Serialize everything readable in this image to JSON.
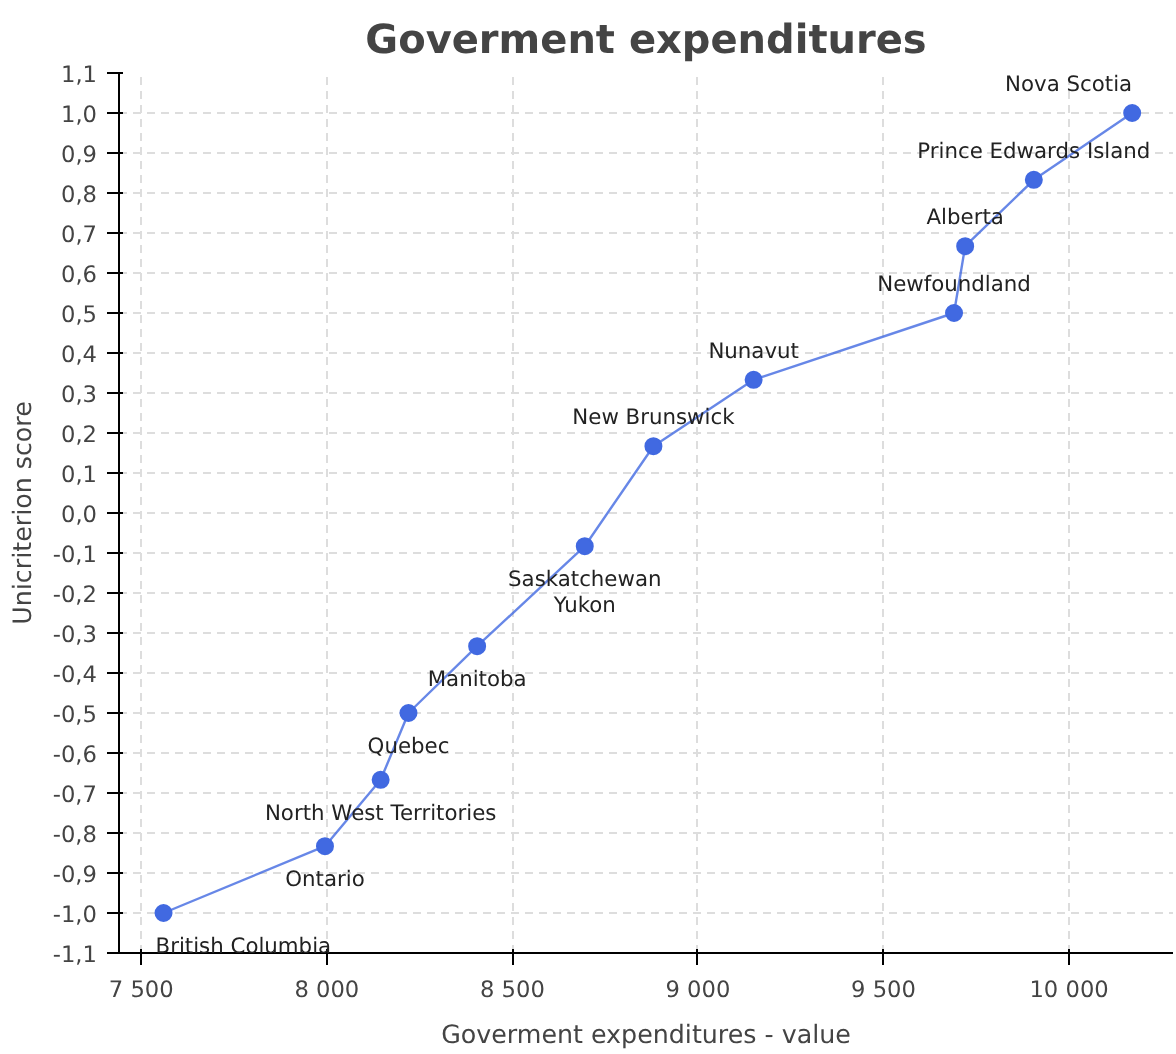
{
  "chart_data": {
    "type": "line",
    "title": "Goverment expenditures",
    "xlabel": "Goverment expenditures - value",
    "ylabel": "Unicriterion score",
    "x": [
      7560,
      7995,
      8145,
      8220,
      8405,
      8695,
      8880,
      9150,
      9690,
      9720,
      9905,
      10170
    ],
    "series": [
      {
        "color": "#4169e1",
        "values": [
          -1.0,
          -0.833,
          -0.667,
          -0.5,
          -0.333,
          -0.083,
          0.167,
          0.333,
          0.5,
          0.667,
          0.833,
          1.0
        ]
      }
    ],
    "marker": "circle",
    "line_style": "solid",
    "grid": true,
    "xlim": [
      7440,
      10280
    ],
    "xticks": [
      {
        "value": 7500,
        "label": "7 500"
      },
      {
        "value": 8000,
        "label": "8 000"
      },
      {
        "value": 8500,
        "label": "8 500"
      },
      {
        "value": 9000,
        "label": "9 000"
      },
      {
        "value": 9500,
        "label": "9 500"
      },
      {
        "value": 10000,
        "label": "10 000"
      }
    ],
    "ylim": [
      -1.1,
      1.1
    ],
    "yticks": [
      {
        "value": -1.1,
        "label": "-1,1"
      },
      {
        "value": -1.0,
        "label": "-1,0"
      },
      {
        "value": -0.9,
        "label": "-0,9"
      },
      {
        "value": -0.8,
        "label": "-0,8"
      },
      {
        "value": -0.7,
        "label": "-0,7"
      },
      {
        "value": -0.6,
        "label": "-0,6"
      },
      {
        "value": -0.5,
        "label": "-0,5"
      },
      {
        "value": -0.4,
        "label": "-0,4"
      },
      {
        "value": -0.3,
        "label": "-0,3"
      },
      {
        "value": -0.2,
        "label": "-0,2"
      },
      {
        "value": -0.1,
        "label": "-0,1"
      },
      {
        "value": 0.0,
        "label": "0,0"
      },
      {
        "value": 0.1,
        "label": "0,1"
      },
      {
        "value": 0.2,
        "label": "0,2"
      },
      {
        "value": 0.3,
        "label": "0,3"
      },
      {
        "value": 0.4,
        "label": "0,4"
      },
      {
        "value": 0.5,
        "label": "0,5"
      },
      {
        "value": 0.6,
        "label": "0,6"
      },
      {
        "value": 0.7,
        "label": "0,7"
      },
      {
        "value": 0.8,
        "label": "0,8"
      },
      {
        "value": 0.9,
        "label": "0,9"
      },
      {
        "value": 1.0,
        "label": "1,0"
      },
      {
        "value": 1.1,
        "label": "1,1"
      }
    ],
    "annotations": [
      {
        "text": "British Columbia",
        "x": 7560,
        "y": -1.0
      },
      {
        "text": "Ontario",
        "x": 7995,
        "y": -0.833
      },
      {
        "text": "North West Territories",
        "x": 8145,
        "y": -0.667
      },
      {
        "text": "Quebec",
        "x": 8220,
        "y": -0.5
      },
      {
        "text": "Manitoba",
        "x": 8405,
        "y": -0.333
      },
      {
        "text": "Saskatchewan",
        "x": 8695,
        "y": -0.083
      },
      {
        "text": "Yukon",
        "x": 8695,
        "y": -0.083
      },
      {
        "text": "New Brunswick",
        "x": 8880,
        "y": 0.167
      },
      {
        "text": "Nunavut",
        "x": 9150,
        "y": 0.333
      },
      {
        "text": "Newfoundland",
        "x": 9690,
        "y": 0.5
      },
      {
        "text": "Alberta",
        "x": 9720,
        "y": 0.667
      },
      {
        "text": "Prince Edwards Island",
        "x": 9905,
        "y": 0.833
      },
      {
        "text": "Nova Scotia",
        "x": 10170,
        "y": 1.0
      }
    ]
  }
}
